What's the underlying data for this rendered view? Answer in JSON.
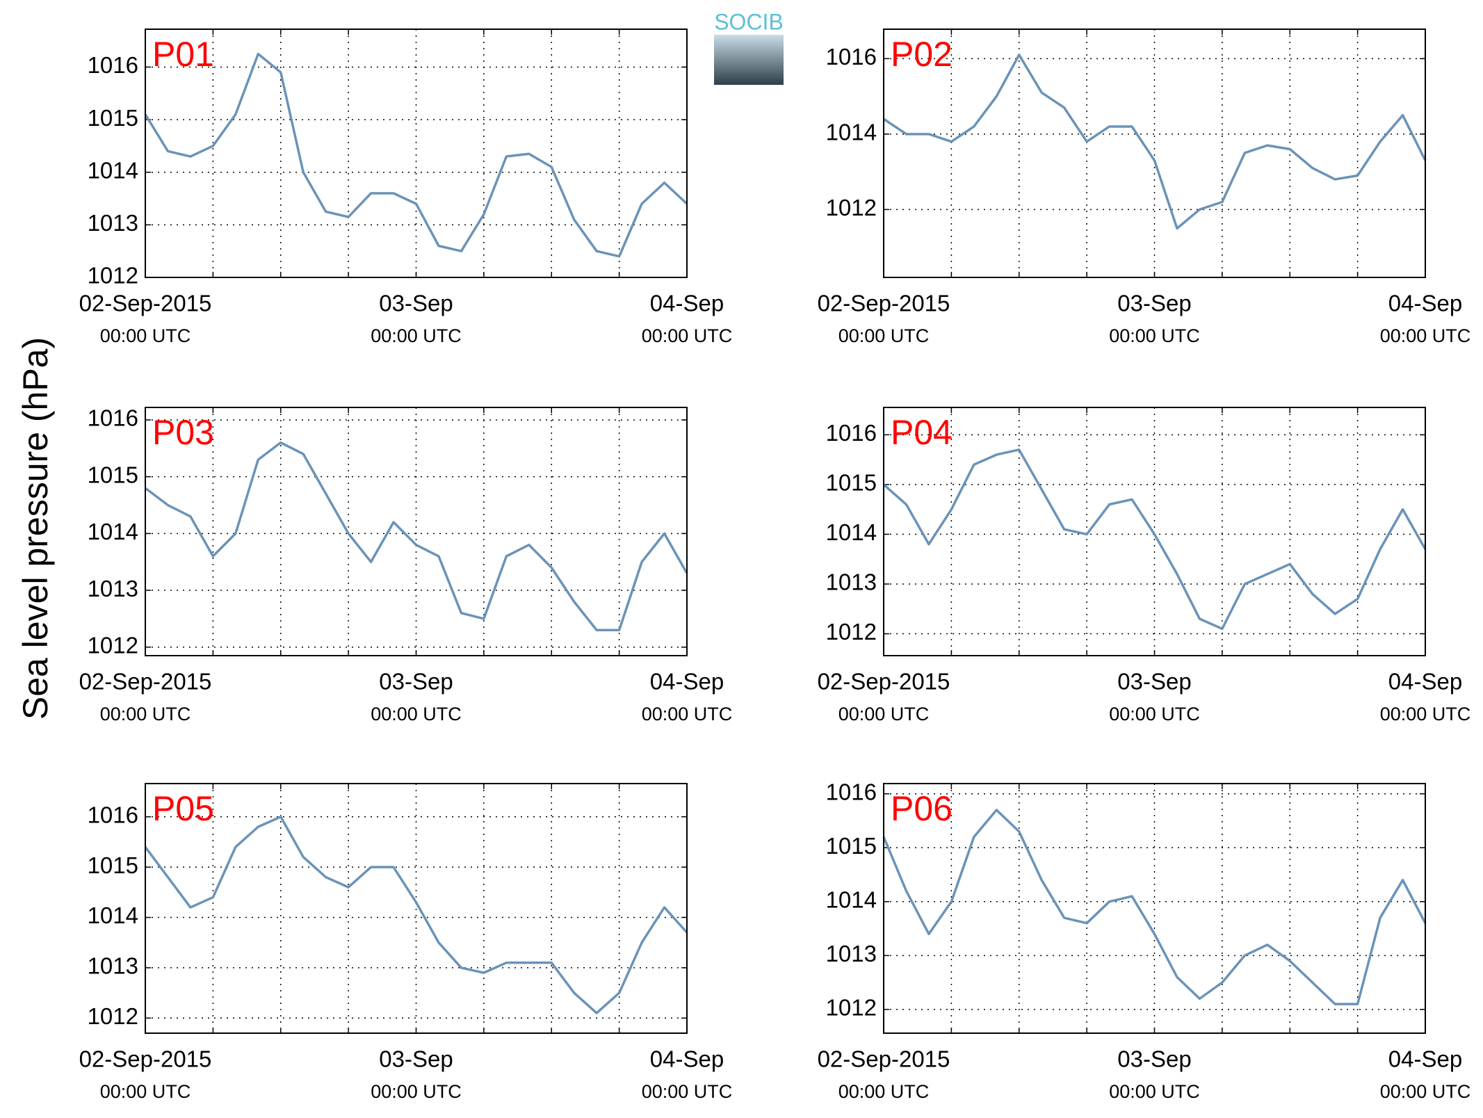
{
  "ylabel": "Sea level pressure (hPa)",
  "logo": "SOCIB",
  "chart_data": [
    {
      "type": "line",
      "title": "P01",
      "color": "#6a93b8",
      "grid": true,
      "x": [
        0,
        2,
        4,
        6,
        8,
        10,
        12,
        14,
        16,
        18,
        20,
        22,
        24,
        26,
        28,
        30,
        32,
        34,
        36,
        38,
        40,
        42,
        44,
        46,
        48
      ],
      "values": [
        1015.1,
        1014.4,
        1014.3,
        1014.5,
        1015.1,
        1016.25,
        1015.9,
        1014.0,
        1013.25,
        1013.15,
        1013.6,
        1013.6,
        1013.4,
        1012.6,
        1012.5,
        1013.2,
        1014.3,
        1014.35,
        1014.1,
        1013.1,
        1012.5,
        1012.4,
        1013.4,
        1013.8,
        1013.4
      ],
      "xlim": [
        0,
        48
      ],
      "ylim": [
        1012,
        1016.72
      ],
      "xticks": [
        {
          "value": 0,
          "label": "02-Sep-2015",
          "sublabel": "00:00 UTC"
        },
        {
          "value": 24,
          "label": "03-Sep",
          "sublabel": "00:00 UTC"
        },
        {
          "value": 48,
          "label": "04-Sep",
          "sublabel": "00:00 UTC"
        }
      ],
      "xgrid": [
        6,
        12,
        18,
        30,
        36,
        42
      ],
      "yticks": [
        1012,
        1013,
        1014,
        1015,
        1016
      ]
    },
    {
      "type": "line",
      "title": "P02",
      "color": "#6a93b8",
      "grid": true,
      "x": [
        0,
        2,
        4,
        6,
        8,
        10,
        12,
        14,
        16,
        18,
        20,
        22,
        24,
        26,
        28,
        30,
        32,
        34,
        36,
        38,
        40,
        42,
        44,
        46,
        48
      ],
      "values": [
        1014.4,
        1014.0,
        1014.0,
        1013.8,
        1014.2,
        1015.0,
        1016.1,
        1015.1,
        1014.7,
        1013.8,
        1014.2,
        1014.2,
        1013.3,
        1011.5,
        1012.0,
        1012.2,
        1013.5,
        1013.7,
        1013.6,
        1013.1,
        1012.8,
        1012.9,
        1013.8,
        1014.5,
        1013.3
      ],
      "xlim": [
        0,
        48
      ],
      "ylim": [
        1010.2,
        1016.78
      ],
      "xticks": [
        {
          "value": 0,
          "label": "02-Sep-2015",
          "sublabel": "00:00 UTC"
        },
        {
          "value": 24,
          "label": "03-Sep",
          "sublabel": "00:00 UTC"
        },
        {
          "value": 48,
          "label": "04-Sep",
          "sublabel": "00:00 UTC"
        }
      ],
      "xgrid": [
        6,
        12,
        18,
        30,
        36,
        42
      ],
      "yticks": [
        1012,
        1014,
        1016
      ]
    },
    {
      "type": "line",
      "title": "P03",
      "color": "#6a93b8",
      "grid": true,
      "x": [
        0,
        2,
        4,
        6,
        8,
        10,
        12,
        14,
        16,
        18,
        20,
        22,
        24,
        26,
        28,
        30,
        32,
        34,
        36,
        38,
        40,
        42,
        44,
        46,
        48
      ],
      "values": [
        1014.8,
        1014.5,
        1014.3,
        1013.6,
        1014.0,
        1015.3,
        1015.6,
        1015.4,
        1014.7,
        1014.0,
        1013.5,
        1014.2,
        1013.8,
        1013.6,
        1012.6,
        1012.5,
        1013.6,
        1013.8,
        1013.4,
        1012.8,
        1012.3,
        1012.3,
        1013.5,
        1014.0,
        1013.3
      ],
      "xlim": [
        0,
        48
      ],
      "ylim": [
        1011.85,
        1016.22
      ],
      "xticks": [
        {
          "value": 0,
          "label": "02-Sep-2015",
          "sublabel": "00:00 UTC"
        },
        {
          "value": 24,
          "label": "03-Sep",
          "sublabel": "00:00 UTC"
        },
        {
          "value": 48,
          "label": "04-Sep",
          "sublabel": "00:00 UTC"
        }
      ],
      "xgrid": [
        6,
        12,
        18,
        30,
        36,
        42
      ],
      "yticks": [
        1012,
        1013,
        1014,
        1015,
        1016
      ]
    },
    {
      "type": "line",
      "title": "P04",
      "color": "#6a93b8",
      "grid": true,
      "x": [
        0,
        2,
        4,
        6,
        8,
        10,
        12,
        14,
        16,
        18,
        20,
        22,
        24,
        26,
        28,
        30,
        32,
        34,
        36,
        38,
        40,
        42,
        44,
        46,
        48
      ],
      "values": [
        1015.0,
        1014.6,
        1013.8,
        1014.5,
        1015.4,
        1015.6,
        1015.7,
        1014.9,
        1014.1,
        1014.0,
        1014.6,
        1014.7,
        1014.0,
        1013.2,
        1012.3,
        1012.1,
        1013.0,
        1013.2,
        1013.4,
        1012.8,
        1012.4,
        1012.7,
        1013.7,
        1014.5,
        1013.7
      ],
      "xlim": [
        0,
        48
      ],
      "ylim": [
        1011.56,
        1016.55
      ],
      "xticks": [
        {
          "value": 0,
          "label": "02-Sep-2015",
          "sublabel": "00:00 UTC"
        },
        {
          "value": 24,
          "label": "03-Sep",
          "sublabel": "00:00 UTC"
        },
        {
          "value": 48,
          "label": "04-Sep",
          "sublabel": "00:00 UTC"
        }
      ],
      "xgrid": [
        6,
        12,
        18,
        30,
        36,
        42
      ],
      "yticks": [
        1012,
        1013,
        1014,
        1015,
        1016
      ]
    },
    {
      "type": "line",
      "title": "P05",
      "color": "#6a93b8",
      "grid": true,
      "x": [
        0,
        2,
        4,
        6,
        8,
        10,
        12,
        14,
        16,
        18,
        20,
        22,
        24,
        26,
        28,
        30,
        32,
        34,
        36,
        38,
        40,
        42,
        44,
        46,
        48
      ],
      "values": [
        1015.4,
        1014.8,
        1014.2,
        1014.4,
        1015.4,
        1015.8,
        1016.0,
        1015.2,
        1014.8,
        1014.6,
        1015.0,
        1015.0,
        1014.3,
        1013.5,
        1013.0,
        1012.9,
        1013.1,
        1013.1,
        1013.1,
        1012.5,
        1012.1,
        1012.5,
        1013.5,
        1014.2,
        1013.7
      ],
      "xlim": [
        0,
        48
      ],
      "ylim": [
        1011.7,
        1016.66
      ],
      "xticks": [
        {
          "value": 0,
          "label": "02-Sep-2015",
          "sublabel": "00:00 UTC"
        },
        {
          "value": 24,
          "label": "03-Sep",
          "sublabel": "00:00 UTC"
        },
        {
          "value": 48,
          "label": "04-Sep",
          "sublabel": "00:00 UTC"
        }
      ],
      "xgrid": [
        6,
        12,
        18,
        30,
        36,
        42
      ],
      "yticks": [
        1012,
        1013,
        1014,
        1015,
        1016
      ]
    },
    {
      "type": "line",
      "title": "P06",
      "color": "#6a93b8",
      "grid": true,
      "x": [
        0,
        2,
        4,
        6,
        8,
        10,
        12,
        14,
        16,
        18,
        20,
        22,
        24,
        26,
        28,
        30,
        32,
        34,
        36,
        38,
        40,
        42,
        44,
        46,
        48
      ],
      "values": [
        1015.2,
        1014.2,
        1013.4,
        1014.0,
        1015.2,
        1015.7,
        1015.3,
        1014.4,
        1013.7,
        1013.6,
        1014.0,
        1014.1,
        1013.4,
        1012.6,
        1012.2,
        1012.5,
        1013.0,
        1013.2,
        1012.9,
        1012.5,
        1012.1,
        1012.1,
        1013.7,
        1014.4,
        1013.6
      ],
      "xlim": [
        0,
        48
      ],
      "ylim": [
        1011.56,
        1016.19
      ],
      "xticks": [
        {
          "value": 0,
          "label": "02-Sep-2015",
          "sublabel": "00:00 UTC"
        },
        {
          "value": 24,
          "label": "03-Sep",
          "sublabel": "00:00 UTC"
        },
        {
          "value": 48,
          "label": "04-Sep",
          "sublabel": "00:00 UTC"
        }
      ],
      "xgrid": [
        6,
        12,
        18,
        30,
        36,
        42
      ],
      "yticks": [
        1012,
        1013,
        1014,
        1015,
        1016
      ]
    }
  ]
}
